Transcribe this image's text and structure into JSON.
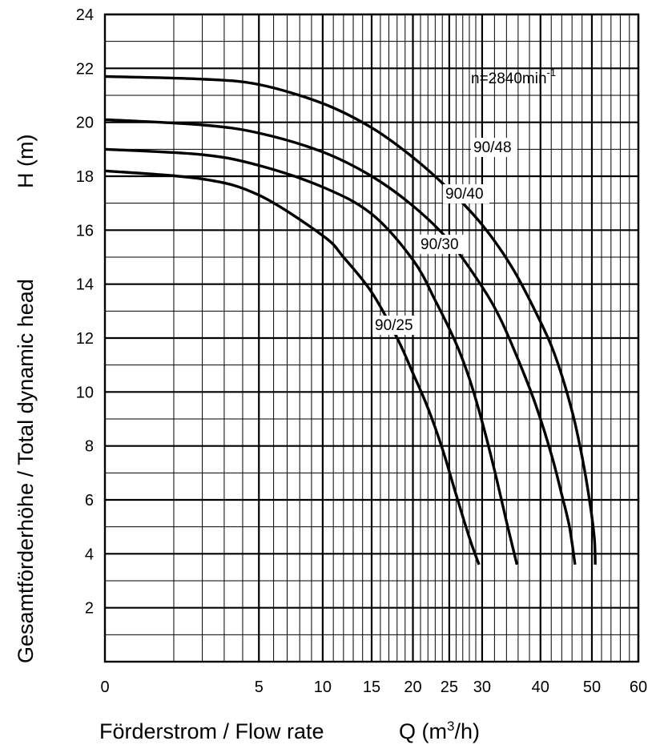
{
  "chart_data": {
    "type": "line",
    "title": "",
    "speed_label": "n=2840min",
    "speed_label_sup": "-1",
    "ylabel": "Gesamtförderhöhe / Total dynamic head",
    "ylabel_unit": "H (m)",
    "xlabel": "Förderstrom / Flow rate",
    "xlabel_unit_prefix": "Q (m",
    "xlabel_unit_sup": "3",
    "xlabel_unit_suffix": "/h)",
    "x_scale": "square-root",
    "xlim": [
      0,
      60
    ],
    "ylim": [
      0,
      24
    ],
    "x_tick_labels": [
      "0",
      "5",
      "10",
      "15",
      "20",
      "25",
      "30",
      "40",
      "50",
      "60"
    ],
    "y_tick_labels": [
      "2",
      "4",
      "6",
      "8",
      "10",
      "12",
      "14",
      "16",
      "18",
      "20",
      "22",
      "24"
    ],
    "grid": true,
    "legend": "none",
    "series": [
      {
        "name": "90/48",
        "x": [
          0,
          2,
          5,
          10,
          15,
          20,
          25,
          30,
          35,
          40,
          43,
          46,
          48,
          49.5,
          50.5,
          50.7
        ],
        "y": [
          21.7,
          21.6,
          21.4,
          20.7,
          19.8,
          18.7,
          17.5,
          16.2,
          14.6,
          12.6,
          11.2,
          9.3,
          7.6,
          6.0,
          4.6,
          3.6
        ]
      },
      {
        "name": "90/40",
        "x": [
          0,
          2,
          5,
          10,
          15,
          20,
          25,
          30,
          33,
          36,
          39,
          42,
          44,
          45.5,
          46.6
        ],
        "y": [
          20.1,
          19.9,
          19.6,
          18.9,
          18.0,
          16.9,
          15.6,
          13.9,
          12.7,
          11.2,
          9.6,
          7.7,
          6.2,
          5.0,
          3.6
        ]
      },
      {
        "name": "90/30",
        "x": [
          0,
          2,
          5,
          10,
          15,
          20,
          23,
          26,
          28,
          30,
          32,
          34,
          35.8
        ],
        "y": [
          19.0,
          18.8,
          18.4,
          17.6,
          16.6,
          14.9,
          13.4,
          11.8,
          10.5,
          8.9,
          7.1,
          5.2,
          3.6
        ]
      },
      {
        "name": "90/25",
        "x": [
          0,
          2,
          5,
          10,
          12,
          15,
          18,
          20,
          22,
          24,
          26,
          28,
          29.5
        ],
        "y": [
          18.2,
          17.9,
          17.3,
          15.8,
          15.0,
          13.7,
          12.0,
          10.7,
          9.4,
          7.9,
          6.2,
          4.6,
          3.6
        ]
      }
    ]
  }
}
